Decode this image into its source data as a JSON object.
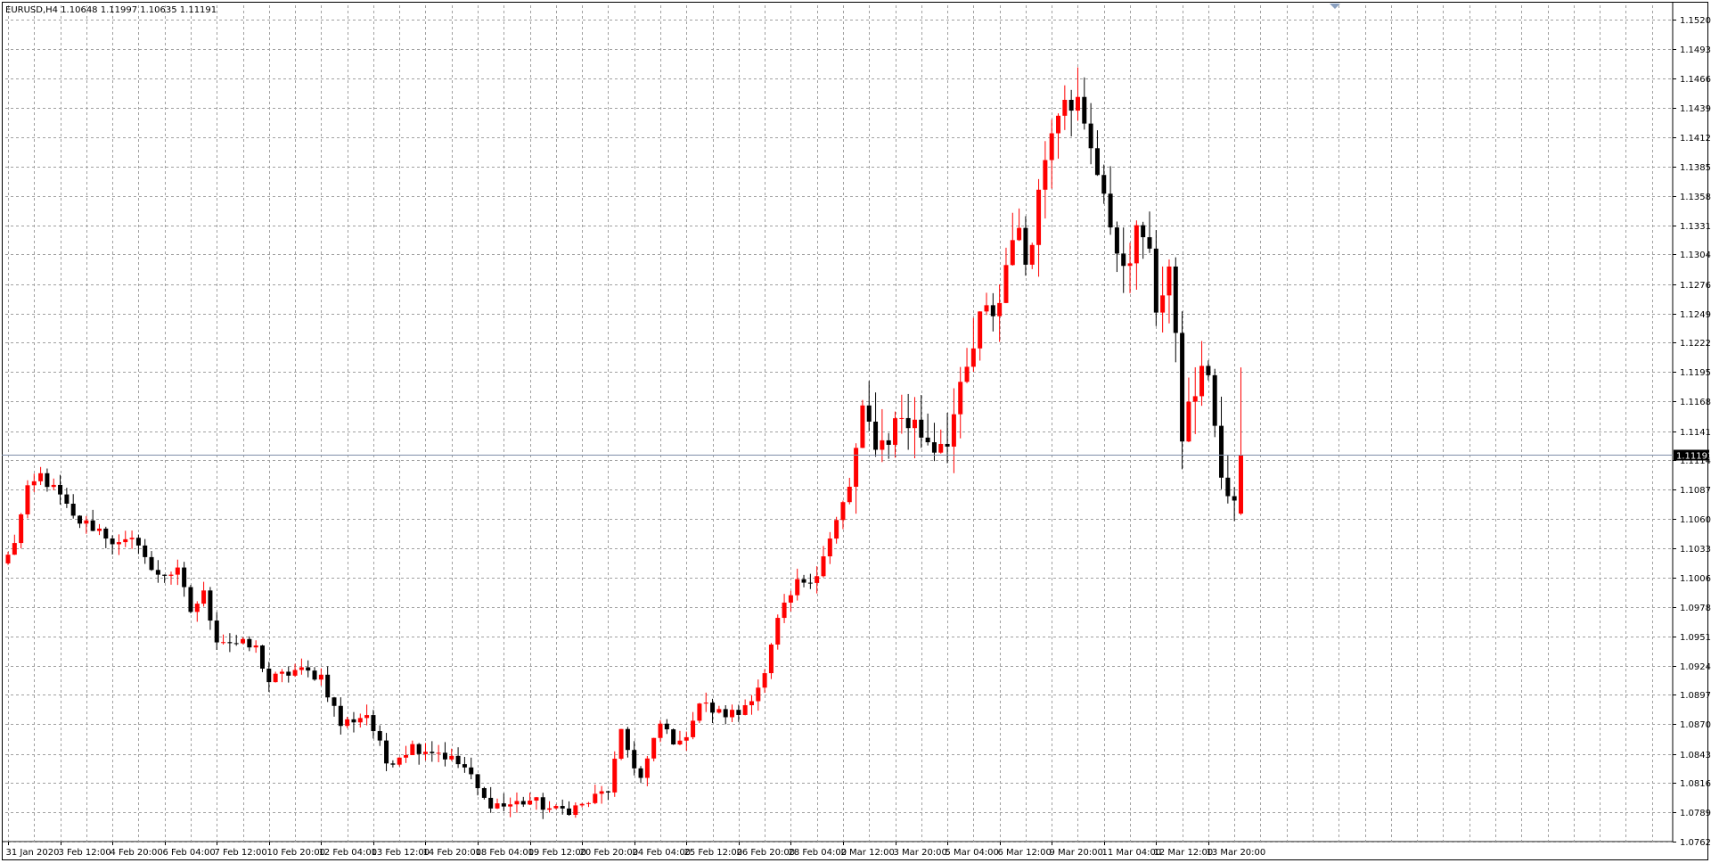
{
  "symbol_header": "EURUSD,H4  1.10648 1.11997 1.10635 1.11191",
  "current_price_label": "1.11191",
  "colors": {
    "background": "#ffffff",
    "grid": "#a0a0a0",
    "bull_candle": "#ff0000",
    "bear_candle": "#000000",
    "price_line": "#7e8ea8",
    "price_tag_bg": "#000000",
    "price_tag_text": "#ffffff"
  },
  "chart_data": {
    "type": "candlestick",
    "title": "EURUSD,H4  1.10648 1.11997 1.10635 1.11191",
    "symbol": "EURUSD",
    "timeframe": "H4",
    "last_bar_ohlc": {
      "open": 1.10648,
      "high": 1.11997,
      "low": 1.10635,
      "close": 1.11191
    },
    "current_price": 1.11191,
    "ylim": [
      1.0762,
      1.1534
    ],
    "grid": true,
    "y_tick_labels": [
      "1.15205",
      "1.14935",
      "1.14665",
      "1.14395",
      "1.14120",
      "1.13850",
      "1.13580",
      "1.13310",
      "1.13040",
      "1.12765",
      "1.12495",
      "1.12225",
      "1.11955",
      "1.11685",
      "1.11410",
      "1.11140",
      "1.10870",
      "1.10600",
      "1.10330",
      "1.10060",
      "1.09785",
      "1.09515",
      "1.09245",
      "1.08975",
      "1.08705",
      "1.08430",
      "1.08160",
      "1.07890",
      "1.07620"
    ],
    "x_tick_labels": [
      "31 Jan 2020",
      "3 Feb 12:00",
      "4 Feb 20:00",
      "6 Feb 04:00",
      "7 Feb 12:00",
      "10 Feb 20:00",
      "12 Feb 04:00",
      "13 Feb 12:00",
      "14 Feb 20:00",
      "18 Feb 04:00",
      "19 Feb 12:00",
      "20 Feb 20:00",
      "24 Feb 04:00",
      "25 Feb 12:00",
      "26 Feb 20:00",
      "28 Feb 04:00",
      "2 Mar 12:00",
      "3 Mar 20:00",
      "5 Mar 04:00",
      "6 Mar 12:00",
      "9 Mar 20:00",
      "11 Mar 04:00",
      "12 Mar 12:00",
      "13 Mar 20:00"
    ],
    "x_tick_bar_index": [
      0,
      8,
      16,
      24,
      32,
      40,
      48,
      56,
      64,
      72,
      80,
      88,
      96,
      104,
      112,
      120,
      128,
      136,
      144,
      152,
      160,
      168,
      176,
      184
    ],
    "anchors": [
      [
        0,
        1.1025
      ],
      [
        1,
        1.104
      ],
      [
        3,
        1.1085
      ],
      [
        5,
        1.11
      ],
      [
        8,
        1.108
      ],
      [
        10,
        1.106
      ],
      [
        14,
        1.105
      ],
      [
        17,
        1.1035
      ],
      [
        20,
        1.104
      ],
      [
        22,
        1.101
      ],
      [
        26,
        1.101
      ],
      [
        28,
        1.0975
      ],
      [
        30,
        1.099
      ],
      [
        32,
        1.095
      ],
      [
        35,
        1.0945
      ],
      [
        38,
        1.094
      ],
      [
        40,
        1.091
      ],
      [
        44,
        1.092
      ],
      [
        48,
        1.0915
      ],
      [
        51,
        1.087
      ],
      [
        55,
        1.088
      ],
      [
        58,
        1.0835
      ],
      [
        62,
        1.085
      ],
      [
        66,
        1.0845
      ],
      [
        70,
        1.083
      ],
      [
        73,
        1.08
      ],
      [
        76,
        1.0795
      ],
      [
        80,
        1.08
      ],
      [
        84,
        1.079
      ],
      [
        88,
        1.0795
      ],
      [
        92,
        1.081
      ],
      [
        94,
        1.086
      ],
      [
        97,
        1.082
      ],
      [
        100,
        1.087
      ],
      [
        103,
        1.085
      ],
      [
        106,
        1.089
      ],
      [
        109,
        1.088
      ],
      [
        112,
        1.088
      ],
      [
        116,
        1.0915
      ],
      [
        118,
        1.0965
      ],
      [
        121,
        1.1
      ],
      [
        124,
        1.101
      ],
      [
        126,
        1.104
      ],
      [
        129,
        1.109
      ],
      [
        131,
        1.115
      ],
      [
        134,
        1.113
      ],
      [
        137,
        1.1155
      ],
      [
        140,
        1.114
      ],
      [
        142,
        1.113
      ],
      [
        144,
        1.114
      ],
      [
        146,
        1.117
      ],
      [
        149,
        1.124
      ],
      [
        152,
        1.126
      ],
      [
        154,
        1.133
      ],
      [
        156,
        1.13
      ],
      [
        158,
        1.136
      ],
      [
        160,
        1.143
      ],
      [
        162,
        1.146
      ],
      [
        164,
        1.144
      ],
      [
        166,
        1.1395
      ],
      [
        168,
        1.137
      ],
      [
        170,
        1.129
      ],
      [
        172,
        1.131
      ],
      [
        174,
        1.1325
      ],
      [
        176,
        1.126
      ],
      [
        178,
        1.129
      ],
      [
        180,
        1.114
      ],
      [
        182,
        1.118
      ],
      [
        184,
        1.12
      ],
      [
        186,
        1.109
      ],
      [
        188,
        1.107
      ]
    ],
    "bar_count": 190
  }
}
